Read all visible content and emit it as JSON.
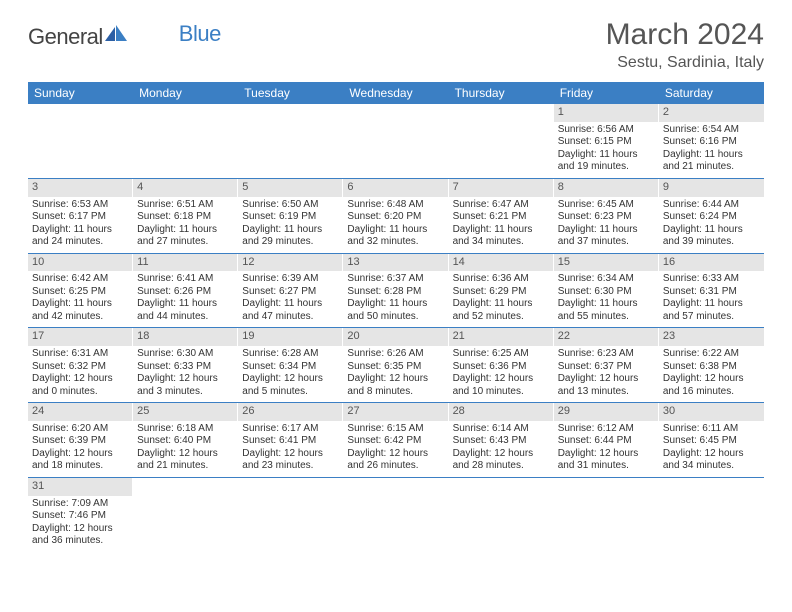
{
  "logo": {
    "part1": "General",
    "part2": "Blue"
  },
  "title": "March 2024",
  "location": "Sestu, Sardinia, Italy",
  "colors": {
    "header_bg": "#3b7fc4",
    "header_text": "#ffffff",
    "daynum_bg": "#e5e5e5",
    "row_divider": "#3b7fc4",
    "text": "#333333",
    "title_color": "#555555"
  },
  "typography": {
    "title_fontsize": 30,
    "location_fontsize": 16,
    "dayhead_fontsize": 12,
    "daynum_fontsize": 11,
    "cell_fontsize": 10
  },
  "day_headers": [
    "Sunday",
    "Monday",
    "Tuesday",
    "Wednesday",
    "Thursday",
    "Friday",
    "Saturday"
  ],
  "weeks": [
    [
      {
        "n": "",
        "sr": "",
        "ss": "",
        "dl": ""
      },
      {
        "n": "",
        "sr": "",
        "ss": "",
        "dl": ""
      },
      {
        "n": "",
        "sr": "",
        "ss": "",
        "dl": ""
      },
      {
        "n": "",
        "sr": "",
        "ss": "",
        "dl": ""
      },
      {
        "n": "",
        "sr": "",
        "ss": "",
        "dl": ""
      },
      {
        "n": "1",
        "sr": "Sunrise: 6:56 AM",
        "ss": "Sunset: 6:15 PM",
        "dl": "Daylight: 11 hours and 19 minutes."
      },
      {
        "n": "2",
        "sr": "Sunrise: 6:54 AM",
        "ss": "Sunset: 6:16 PM",
        "dl": "Daylight: 11 hours and 21 minutes."
      }
    ],
    [
      {
        "n": "3",
        "sr": "Sunrise: 6:53 AM",
        "ss": "Sunset: 6:17 PM",
        "dl": "Daylight: 11 hours and 24 minutes."
      },
      {
        "n": "4",
        "sr": "Sunrise: 6:51 AM",
        "ss": "Sunset: 6:18 PM",
        "dl": "Daylight: 11 hours and 27 minutes."
      },
      {
        "n": "5",
        "sr": "Sunrise: 6:50 AM",
        "ss": "Sunset: 6:19 PM",
        "dl": "Daylight: 11 hours and 29 minutes."
      },
      {
        "n": "6",
        "sr": "Sunrise: 6:48 AM",
        "ss": "Sunset: 6:20 PM",
        "dl": "Daylight: 11 hours and 32 minutes."
      },
      {
        "n": "7",
        "sr": "Sunrise: 6:47 AM",
        "ss": "Sunset: 6:21 PM",
        "dl": "Daylight: 11 hours and 34 minutes."
      },
      {
        "n": "8",
        "sr": "Sunrise: 6:45 AM",
        "ss": "Sunset: 6:23 PM",
        "dl": "Daylight: 11 hours and 37 minutes."
      },
      {
        "n": "9",
        "sr": "Sunrise: 6:44 AM",
        "ss": "Sunset: 6:24 PM",
        "dl": "Daylight: 11 hours and 39 minutes."
      }
    ],
    [
      {
        "n": "10",
        "sr": "Sunrise: 6:42 AM",
        "ss": "Sunset: 6:25 PM",
        "dl": "Daylight: 11 hours and 42 minutes."
      },
      {
        "n": "11",
        "sr": "Sunrise: 6:41 AM",
        "ss": "Sunset: 6:26 PM",
        "dl": "Daylight: 11 hours and 44 minutes."
      },
      {
        "n": "12",
        "sr": "Sunrise: 6:39 AM",
        "ss": "Sunset: 6:27 PM",
        "dl": "Daylight: 11 hours and 47 minutes."
      },
      {
        "n": "13",
        "sr": "Sunrise: 6:37 AM",
        "ss": "Sunset: 6:28 PM",
        "dl": "Daylight: 11 hours and 50 minutes."
      },
      {
        "n": "14",
        "sr": "Sunrise: 6:36 AM",
        "ss": "Sunset: 6:29 PM",
        "dl": "Daylight: 11 hours and 52 minutes."
      },
      {
        "n": "15",
        "sr": "Sunrise: 6:34 AM",
        "ss": "Sunset: 6:30 PM",
        "dl": "Daylight: 11 hours and 55 minutes."
      },
      {
        "n": "16",
        "sr": "Sunrise: 6:33 AM",
        "ss": "Sunset: 6:31 PM",
        "dl": "Daylight: 11 hours and 57 minutes."
      }
    ],
    [
      {
        "n": "17",
        "sr": "Sunrise: 6:31 AM",
        "ss": "Sunset: 6:32 PM",
        "dl": "Daylight: 12 hours and 0 minutes."
      },
      {
        "n": "18",
        "sr": "Sunrise: 6:30 AM",
        "ss": "Sunset: 6:33 PM",
        "dl": "Daylight: 12 hours and 3 minutes."
      },
      {
        "n": "19",
        "sr": "Sunrise: 6:28 AM",
        "ss": "Sunset: 6:34 PM",
        "dl": "Daylight: 12 hours and 5 minutes."
      },
      {
        "n": "20",
        "sr": "Sunrise: 6:26 AM",
        "ss": "Sunset: 6:35 PM",
        "dl": "Daylight: 12 hours and 8 minutes."
      },
      {
        "n": "21",
        "sr": "Sunrise: 6:25 AM",
        "ss": "Sunset: 6:36 PM",
        "dl": "Daylight: 12 hours and 10 minutes."
      },
      {
        "n": "22",
        "sr": "Sunrise: 6:23 AM",
        "ss": "Sunset: 6:37 PM",
        "dl": "Daylight: 12 hours and 13 minutes."
      },
      {
        "n": "23",
        "sr": "Sunrise: 6:22 AM",
        "ss": "Sunset: 6:38 PM",
        "dl": "Daylight: 12 hours and 16 minutes."
      }
    ],
    [
      {
        "n": "24",
        "sr": "Sunrise: 6:20 AM",
        "ss": "Sunset: 6:39 PM",
        "dl": "Daylight: 12 hours and 18 minutes."
      },
      {
        "n": "25",
        "sr": "Sunrise: 6:18 AM",
        "ss": "Sunset: 6:40 PM",
        "dl": "Daylight: 12 hours and 21 minutes."
      },
      {
        "n": "26",
        "sr": "Sunrise: 6:17 AM",
        "ss": "Sunset: 6:41 PM",
        "dl": "Daylight: 12 hours and 23 minutes."
      },
      {
        "n": "27",
        "sr": "Sunrise: 6:15 AM",
        "ss": "Sunset: 6:42 PM",
        "dl": "Daylight: 12 hours and 26 minutes."
      },
      {
        "n": "28",
        "sr": "Sunrise: 6:14 AM",
        "ss": "Sunset: 6:43 PM",
        "dl": "Daylight: 12 hours and 28 minutes."
      },
      {
        "n": "29",
        "sr": "Sunrise: 6:12 AM",
        "ss": "Sunset: 6:44 PM",
        "dl": "Daylight: 12 hours and 31 minutes."
      },
      {
        "n": "30",
        "sr": "Sunrise: 6:11 AM",
        "ss": "Sunset: 6:45 PM",
        "dl": "Daylight: 12 hours and 34 minutes."
      }
    ],
    [
      {
        "n": "31",
        "sr": "Sunrise: 7:09 AM",
        "ss": "Sunset: 7:46 PM",
        "dl": "Daylight: 12 hours and 36 minutes."
      },
      {
        "n": "",
        "sr": "",
        "ss": "",
        "dl": ""
      },
      {
        "n": "",
        "sr": "",
        "ss": "",
        "dl": ""
      },
      {
        "n": "",
        "sr": "",
        "ss": "",
        "dl": ""
      },
      {
        "n": "",
        "sr": "",
        "ss": "",
        "dl": ""
      },
      {
        "n": "",
        "sr": "",
        "ss": "",
        "dl": ""
      },
      {
        "n": "",
        "sr": "",
        "ss": "",
        "dl": ""
      }
    ]
  ]
}
